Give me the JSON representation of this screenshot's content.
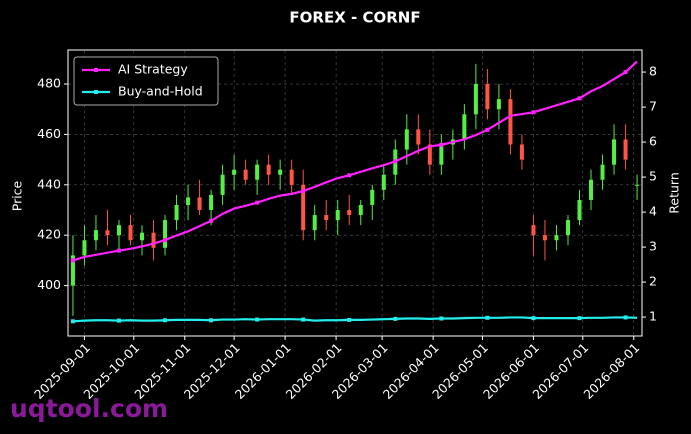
{
  "chart_data": {
    "type": "candlestick",
    "title": "FOREX - CORNF",
    "ylabel": "Price",
    "y2label": "Return",
    "watermark": "uqtool.com",
    "legend": "upper left",
    "grid": true,
    "up_color": "#55ee44",
    "down_color": "#ff5544",
    "x": [
      "2025-08-25",
      "2025-09-01",
      "2025-09-08",
      "2025-09-15",
      "2025-09-22",
      "2025-09-29",
      "2025-10-06",
      "2025-10-13",
      "2025-10-20",
      "2025-10-27",
      "2025-11-03",
      "2025-11-10",
      "2025-11-17",
      "2025-11-24",
      "2025-12-01",
      "2025-12-08",
      "2025-12-15",
      "2025-12-22",
      "2025-12-29",
      "2026-01-05",
      "2026-01-12",
      "2026-01-19",
      "2026-01-26",
      "2026-02-02",
      "2026-02-09",
      "2026-02-16",
      "2026-02-23",
      "2026-03-02",
      "2026-03-09",
      "2026-03-16",
      "2026-03-23",
      "2026-03-30",
      "2026-04-06",
      "2026-04-13",
      "2026-04-20",
      "2026-04-27",
      "2026-05-04",
      "2026-05-11",
      "2026-05-18",
      "2026-05-25",
      "2026-06-01",
      "2026-06-08",
      "2026-06-15",
      "2026-06-22",
      "2026-06-29",
      "2026-07-06",
      "2026-07-13",
      "2026-07-20",
      "2026-07-27",
      "2026-08-03"
    ],
    "open": [
      400,
      412,
      418,
      422,
      420,
      424,
      418,
      421,
      415,
      426,
      432,
      435,
      430,
      436,
      444,
      446,
      442,
      448,
      444,
      446,
      440,
      422,
      428,
      426,
      430,
      428,
      432,
      438,
      444,
      454,
      462,
      456,
      448,
      456,
      458,
      468,
      480,
      470,
      474,
      456,
      424,
      420,
      418,
      420,
      426,
      434,
      442,
      448,
      458,
      440
    ],
    "high": [
      420,
      424,
      428,
      430,
      426,
      428,
      424,
      426,
      428,
      436,
      440,
      442,
      438,
      448,
      452,
      450,
      450,
      452,
      450,
      450,
      446,
      432,
      434,
      434,
      436,
      434,
      440,
      448,
      458,
      468,
      468,
      462,
      460,
      462,
      472,
      488,
      486,
      480,
      478,
      460,
      428,
      426,
      424,
      428,
      438,
      446,
      452,
      464,
      464,
      444
    ],
    "low": [
      388,
      408,
      414,
      416,
      414,
      416,
      412,
      410,
      412,
      422,
      426,
      428,
      424,
      432,
      438,
      440,
      436,
      440,
      438,
      436,
      418,
      418,
      422,
      420,
      424,
      424,
      426,
      434,
      440,
      448,
      452,
      444,
      444,
      450,
      454,
      462,
      466,
      462,
      452,
      446,
      412,
      410,
      414,
      416,
      424,
      430,
      438,
      444,
      446,
      434
    ],
    "close": [
      412,
      418,
      422,
      420,
      424,
      418,
      421,
      415,
      426,
      432,
      435,
      430,
      436,
      444,
      446,
      442,
      448,
      444,
      446,
      440,
      422,
      428,
      426,
      430,
      428,
      432,
      438,
      444,
      454,
      462,
      456,
      448,
      456,
      458,
      468,
      480,
      470,
      474,
      456,
      450,
      420,
      418,
      420,
      426,
      434,
      442,
      448,
      458,
      450,
      440
    ],
    "series": [
      {
        "name": "AI Strategy",
        "color": "#ff22ff",
        "axis": "y2",
        "values": [
          2.62,
          2.72,
          2.78,
          2.84,
          2.9,
          2.95,
          3.02,
          3.1,
          3.2,
          3.33,
          3.45,
          3.6,
          3.75,
          3.95,
          4.1,
          4.18,
          4.27,
          4.38,
          4.47,
          4.52,
          4.6,
          4.72,
          4.85,
          4.97,
          5.05,
          5.15,
          5.25,
          5.34,
          5.45,
          5.6,
          5.75,
          5.88,
          5.92,
          6.0,
          6.08,
          6.2,
          6.35,
          6.55,
          6.75,
          6.8,
          6.85,
          6.95,
          7.05,
          7.15,
          7.25,
          7.45,
          7.6,
          7.8,
          8.0,
          8.3
        ]
      },
      {
        "name": "Buy-and-Hold",
        "color": "#22eeee",
        "axis": "y2",
        "values": [
          0.88,
          0.9,
          0.91,
          0.91,
          0.9,
          0.91,
          0.9,
          0.9,
          0.91,
          0.92,
          0.92,
          0.92,
          0.91,
          0.93,
          0.93,
          0.94,
          0.93,
          0.94,
          0.94,
          0.94,
          0.93,
          0.9,
          0.91,
          0.91,
          0.92,
          0.92,
          0.93,
          0.94,
          0.95,
          0.96,
          0.96,
          0.95,
          0.96,
          0.96,
          0.97,
          0.98,
          0.98,
          0.98,
          0.99,
          0.99,
          0.97,
          0.97,
          0.97,
          0.97,
          0.97,
          0.98,
          0.98,
          0.99,
          0.99,
          0.98
        ]
      }
    ],
    "xlim": [
      "2025-08-22",
      "2026-08-06"
    ],
    "xticks": [
      "2025-09-01",
      "2025-10-01",
      "2025-11-01",
      "2025-12-01",
      "2026-01-01",
      "2026-02-01",
      "2026-03-01",
      "2026-04-01",
      "2026-05-01",
      "2026-06-01",
      "2026-07-01",
      "2026-08-01"
    ],
    "ylim": [
      380,
      493.5
    ],
    "yticks": [
      400,
      420,
      440,
      460,
      480
    ],
    "y2lim": [
      0.46,
      8.63
    ],
    "y2ticks": [
      1,
      2,
      3,
      4,
      5,
      6,
      7,
      8
    ]
  }
}
